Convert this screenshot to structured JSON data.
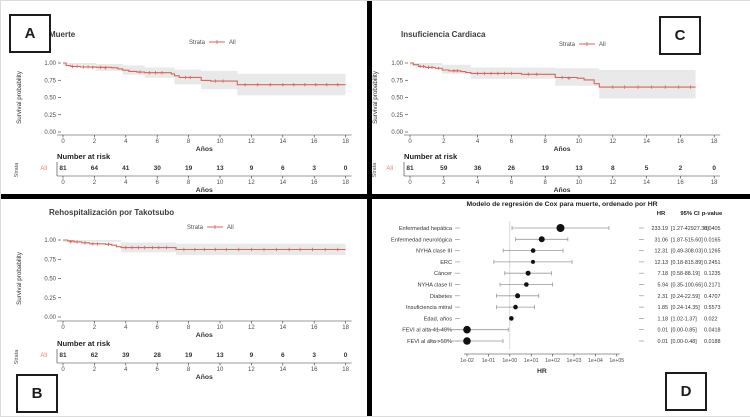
{
  "panels": {
    "a": "A",
    "b": "B",
    "c": "C",
    "d": "D"
  },
  "colors": {
    "curve": "#d9655b",
    "ci_band": "#e4e4e4",
    "risk_series_label": "#e0837b",
    "forest_dot": "#111111",
    "forest_bar": "#999999",
    "reference_line": "#c9c9c9",
    "divider": "#000000"
  },
  "chart_data": [
    {
      "id": "km-muerte",
      "panel": "A",
      "type": "line",
      "title": "Muerte",
      "xlabel": "Años",
      "ylabel": "Survival probability",
      "legend_label": "Strata",
      "legend_series": "All",
      "xlim": [
        0,
        18
      ],
      "ylim": [
        0,
        1
      ],
      "y_tick_labels": [
        "1.00",
        "0.75",
        "0.50",
        "0.25",
        "0.00"
      ],
      "x_ticks": [
        0,
        2,
        4,
        6,
        8,
        10,
        12,
        14,
        16,
        18
      ],
      "steps": [
        [
          0,
          1
        ],
        [
          0.2,
          0.963
        ],
        [
          0.5,
          0.951
        ],
        [
          1.1,
          0.944
        ],
        [
          2.1,
          0.938
        ],
        [
          3.1,
          0.931
        ],
        [
          3.5,
          0.914
        ],
        [
          3.8,
          0.895
        ],
        [
          4.2,
          0.878
        ],
        [
          4.7,
          0.868
        ],
        [
          5.2,
          0.859
        ],
        [
          6.6,
          0.859
        ],
        [
          6.9,
          0.842
        ],
        [
          7.1,
          0.815
        ],
        [
          7.4,
          0.792
        ],
        [
          8.6,
          0.792
        ],
        [
          8.8,
          0.748
        ],
        [
          9.4,
          0.737
        ],
        [
          10.9,
          0.737
        ],
        [
          11.1,
          0.685
        ],
        [
          18,
          0.685
        ]
      ],
      "ci_upper": [
        [
          0,
          1
        ],
        [
          2.1,
          0.985
        ],
        [
          3.8,
          0.965
        ],
        [
          5.2,
          0.935
        ],
        [
          7.1,
          0.905
        ],
        [
          8.8,
          0.885
        ],
        [
          11.1,
          0.845
        ],
        [
          18,
          0.845
        ]
      ],
      "ci_lower": [
        [
          0,
          0.965
        ],
        [
          2.1,
          0.885
        ],
        [
          3.8,
          0.83
        ],
        [
          5.2,
          0.785
        ],
        [
          7.1,
          0.69
        ],
        [
          8.8,
          0.62
        ],
        [
          11.1,
          0.53
        ],
        [
          18,
          0.53
        ]
      ],
      "censors": [
        [
          0.6,
          0.951
        ],
        [
          0.9,
          0.951
        ],
        [
          1.3,
          0.944
        ],
        [
          1.6,
          0.944
        ],
        [
          1.9,
          0.938
        ],
        [
          2.4,
          0.938
        ],
        [
          2.7,
          0.931
        ],
        [
          4.9,
          0.868
        ],
        [
          5.5,
          0.859
        ],
        [
          5.9,
          0.859
        ],
        [
          6.3,
          0.859
        ],
        [
          7.8,
          0.792
        ],
        [
          8.1,
          0.792
        ],
        [
          9.7,
          0.737
        ],
        [
          10.2,
          0.737
        ],
        [
          11.6,
          0.685
        ],
        [
          12.4,
          0.685
        ],
        [
          13.2,
          0.685
        ],
        [
          14,
          0.685
        ],
        [
          14.7,
          0.685
        ],
        [
          15.4,
          0.685
        ],
        [
          16.1,
          0.685
        ],
        [
          16.8,
          0.685
        ],
        [
          17.5,
          0.685
        ]
      ],
      "risk_title": "Number at risk",
      "risk_axis_label": "Strata",
      "risk_series": "All",
      "number_at_risk": [
        81,
        64,
        41,
        30,
        19,
        13,
        9,
        6,
        3,
        0
      ]
    },
    {
      "id": "km-insuficiencia-cardiaca",
      "panel": "C",
      "type": "line",
      "title": "Insuficiencia Cardiaca",
      "xlabel": "Años",
      "ylabel": "Survival probability",
      "legend_label": "Strata",
      "legend_series": "All",
      "xlim": [
        0,
        18
      ],
      "ylim": [
        0,
        1
      ],
      "y_tick_labels": [
        "1.00",
        "0.75",
        "0.50",
        "0.25",
        "0.00"
      ],
      "x_ticks": [
        0,
        2,
        4,
        6,
        8,
        10,
        12,
        14,
        16,
        18
      ],
      "steps": [
        [
          0,
          1
        ],
        [
          0.2,
          0.975
        ],
        [
          0.5,
          0.951
        ],
        [
          0.9,
          0.938
        ],
        [
          1.5,
          0.925
        ],
        [
          1.9,
          0.899
        ],
        [
          2.3,
          0.887
        ],
        [
          3,
          0.875
        ],
        [
          3.3,
          0.862
        ],
        [
          3.6,
          0.849
        ],
        [
          6.4,
          0.849
        ],
        [
          6.6,
          0.836
        ],
        [
          8.4,
          0.836
        ],
        [
          8.6,
          0.79
        ],
        [
          9.9,
          0.779
        ],
        [
          10.3,
          0.755
        ],
        [
          10.9,
          0.7
        ],
        [
          11.2,
          0.651
        ],
        [
          16.9,
          0.651
        ]
      ],
      "ci_upper": [
        [
          0,
          1
        ],
        [
          1.9,
          0.975
        ],
        [
          3.6,
          0.935
        ],
        [
          8.6,
          0.925
        ],
        [
          11.2,
          0.9
        ],
        [
          16.9,
          0.9
        ]
      ],
      "ci_lower": [
        [
          0,
          0.96
        ],
        [
          1.9,
          0.845
        ],
        [
          3.6,
          0.77
        ],
        [
          8.6,
          0.67
        ],
        [
          11.2,
          0.485
        ],
        [
          16.9,
          0.485
        ]
      ],
      "censors": [
        [
          0.6,
          0.951
        ],
        [
          0.8,
          0.951
        ],
        [
          1.1,
          0.938
        ],
        [
          1.3,
          0.938
        ],
        [
          1.7,
          0.925
        ],
        [
          2.6,
          0.887
        ],
        [
          2.8,
          0.887
        ],
        [
          4,
          0.849
        ],
        [
          4.4,
          0.849
        ],
        [
          4.8,
          0.849
        ],
        [
          5.2,
          0.849
        ],
        [
          5.6,
          0.849
        ],
        [
          6,
          0.849
        ],
        [
          7,
          0.836
        ],
        [
          7.5,
          0.836
        ],
        [
          9,
          0.79
        ],
        [
          9.4,
          0.779
        ],
        [
          12,
          0.651
        ],
        [
          12.7,
          0.651
        ],
        [
          13.5,
          0.651
        ],
        [
          14.3,
          0.651
        ],
        [
          15.1,
          0.651
        ],
        [
          15.9,
          0.651
        ],
        [
          16.6,
          0.651
        ]
      ],
      "risk_title": "Number at risk",
      "risk_axis_label": "Strata",
      "risk_series": "All",
      "number_at_risk": [
        81,
        59,
        36,
        26,
        19,
        13,
        8,
        5,
        2,
        0
      ]
    },
    {
      "id": "km-rehospitalizacion",
      "panel": "B",
      "type": "line",
      "title": "Rehospitalización por Takotsubo",
      "xlabel": "Años",
      "ylabel": "Survival probability",
      "legend_label": "Strata",
      "legend_series": "All",
      "xlim": [
        0,
        18
      ],
      "ylim": [
        0,
        1
      ],
      "y_tick_labels": [
        "1.00",
        "0.75",
        "0.50",
        "0.25",
        "0.00"
      ],
      "x_ticks": [
        0,
        2,
        4,
        6,
        8,
        10,
        12,
        14,
        16,
        18
      ],
      "steps": [
        [
          0,
          1
        ],
        [
          0.3,
          0.988
        ],
        [
          0.7,
          0.975
        ],
        [
          1.2,
          0.963
        ],
        [
          1.7,
          0.951
        ],
        [
          2.7,
          0.944
        ],
        [
          3.1,
          0.932
        ],
        [
          3.4,
          0.913
        ],
        [
          3.7,
          0.901
        ],
        [
          7,
          0.901
        ],
        [
          7.2,
          0.876
        ],
        [
          18,
          0.876
        ]
      ],
      "ci_upper": [
        [
          0,
          1
        ],
        [
          3.7,
          0.968
        ],
        [
          7.2,
          0.952
        ],
        [
          18,
          0.952
        ]
      ],
      "ci_lower": [
        [
          0,
          0.978
        ],
        [
          3.7,
          0.84
        ],
        [
          7.2,
          0.805
        ],
        [
          18,
          0.805
        ]
      ],
      "censors": [
        [
          0.5,
          0.975
        ],
        [
          0.9,
          0.975
        ],
        [
          1.4,
          0.963
        ],
        [
          1.9,
          0.951
        ],
        [
          2.2,
          0.951
        ],
        [
          2.9,
          0.944
        ],
        [
          4,
          0.901
        ],
        [
          4.4,
          0.901
        ],
        [
          4.8,
          0.901
        ],
        [
          5.2,
          0.901
        ],
        [
          5.7,
          0.901
        ],
        [
          6.1,
          0.901
        ],
        [
          6.6,
          0.901
        ],
        [
          7.7,
          0.876
        ],
        [
          8.4,
          0.876
        ],
        [
          9,
          0.876
        ],
        [
          9.7,
          0.876
        ],
        [
          10.4,
          0.876
        ],
        [
          11.2,
          0.876
        ],
        [
          12,
          0.876
        ],
        [
          12.8,
          0.876
        ],
        [
          13.6,
          0.876
        ],
        [
          14.4,
          0.876
        ],
        [
          15.1,
          0.876
        ],
        [
          15.9,
          0.876
        ],
        [
          16.7,
          0.876
        ],
        [
          17.5,
          0.876
        ]
      ],
      "risk_title": "Number at risk",
      "risk_axis_label": "Strata",
      "risk_series": "All",
      "number_at_risk": [
        81,
        62,
        39,
        28,
        19,
        13,
        9,
        6,
        3,
        0
      ]
    },
    {
      "id": "cox-forest",
      "panel": "D",
      "type": "scatter",
      "title": "Modelo de regresión de Cox para muerte, ordenado por HR",
      "xlabel": "HR",
      "x_tick_labels": [
        "1e-02",
        "1e-01",
        "1e+00",
        "1e+01",
        "1e+02",
        "1e+03",
        "1e+04",
        "1e+05"
      ],
      "reference_value": 1,
      "table_headers": [
        "HR",
        "95% CI",
        "p-value"
      ],
      "rows": [
        {
          "label": "Enfermedad hepática",
          "hr": 233.19,
          "ci_low": 1.27,
          "ci_high": 42927.38,
          "hr_text": "233.19",
          "ci_text": "[1.27-42927.38]",
          "p_text": "0.0405",
          "dot": 4.0
        },
        {
          "label": "Enfermedad neurológica",
          "hr": 31.06,
          "ci_low": 1.87,
          "ci_high": 515.6,
          "hr_text": "31.06",
          "ci_text": "[1.87-515.60]",
          "p_text": "0.0165",
          "dot": 3.0
        },
        {
          "label": "NYHA clase III",
          "hr": 12.31,
          "ci_low": 0.49,
          "ci_high": 308.03,
          "hr_text": "12.31",
          "ci_text": "[0.49-308.03]",
          "p_text": "0.1265",
          "dot": 2.3
        },
        {
          "label": "ERC",
          "hr": 12.13,
          "ci_low": 0.18,
          "ci_high": 815.89,
          "hr_text": "12.13",
          "ci_text": "[0.18-815.89]",
          "p_text": "0.2451",
          "dot": 2.0
        },
        {
          "label": "Cáncer",
          "hr": 7.18,
          "ci_low": 0.58,
          "ci_high": 88.19,
          "hr_text": "7.18",
          "ci_text": "[0.58-88.19]",
          "p_text": "0.1235",
          "dot": 2.5
        },
        {
          "label": "NYHA clase II",
          "hr": 5.94,
          "ci_low": 0.35,
          "ci_high": 100.66,
          "hr_text": "5.94",
          "ci_text": "[0.35-100.66]",
          "p_text": "0.2171",
          "dot": 2.3
        },
        {
          "label": "Diabetes",
          "hr": 2.31,
          "ci_low": 0.24,
          "ci_high": 22.59,
          "hr_text": "2.31",
          "ci_text": "[0.24-22.59]",
          "p_text": "0.4707",
          "dot": 2.5
        },
        {
          "label": "Insuficiencia mitral",
          "hr": 1.85,
          "ci_low": 0.24,
          "ci_high": 14.35,
          "hr_text": "1.85",
          "ci_text": "[0.24-14.35]",
          "p_text": "0.5573",
          "dot": 2.3
        },
        {
          "label": "Edad, años",
          "hr": 1.18,
          "ci_low": 1.02,
          "ci_high": 1.37,
          "hr_text": "1.18",
          "ci_text": "[1.02-1.37]",
          "p_text": "0.022",
          "dot": 2.3
        },
        {
          "label": "FEVI al alta 41-49%",
          "hr": 0.01,
          "ci_low": 0,
          "ci_high": 0.85,
          "hr_text": "0.01",
          "ci_text": "[0.00-0.85]",
          "p_text": "0.0418",
          "dot": 3.8
        },
        {
          "label": "FEVI al alta >50%",
          "hr": 0.01,
          "ci_low": 0,
          "ci_high": 0.48,
          "hr_text": "0.01",
          "ci_text": "[0.00-0.48]",
          "p_text": "0.0188",
          "dot": 3.8
        }
      ]
    }
  ]
}
